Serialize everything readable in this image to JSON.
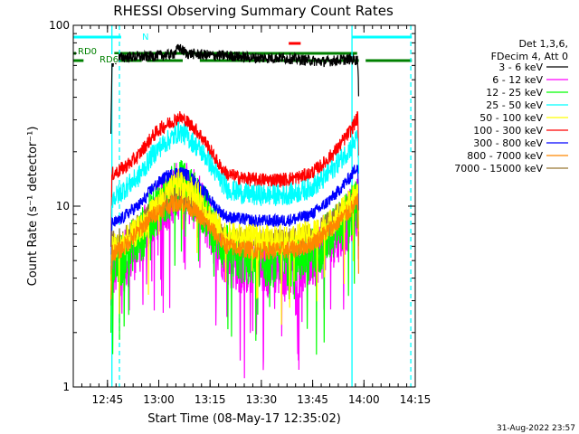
{
  "chart_data": {
    "type": "line",
    "title": "RHESSI Observing Summary Count Rates",
    "xlabel": "Start Time (08-May-17 12:35:02)",
    "ylabel": "Count Rate (s⁻¹ detector⁻¹)",
    "y_scale": "log",
    "ylim": [
      1,
      100
    ],
    "yticks": [
      {
        "value": 1,
        "label": "1"
      },
      {
        "value": 10,
        "label": "10"
      },
      {
        "value": 100,
        "label": "100"
      }
    ],
    "x_range_minutes": [
      755.0,
      855.0
    ],
    "xticks": [
      {
        "minutes": 765,
        "label": "12:45"
      },
      {
        "minutes": 780,
        "label": "13:00"
      },
      {
        "minutes": 795,
        "label": "13:15"
      },
      {
        "minutes": 810,
        "label": "13:30"
      },
      {
        "minutes": 825,
        "label": "13:45"
      },
      {
        "minutes": 840,
        "label": "14:00"
      },
      {
        "minutes": 855,
        "label": "14:15"
      }
    ],
    "legend_header": [
      "Det 1,3,6,",
      "FDecim 4, Att 0"
    ],
    "legend_placement": "right",
    "data_start_minutes": 766.0,
    "data_end_minutes": 838.5,
    "series": [
      {
        "name": "3 - 6 keV",
        "color": "#000000",
        "points": [
          [
            766.0,
            24
          ],
          [
            766.3,
            62
          ],
          [
            768,
            66
          ],
          [
            772,
            67
          ],
          [
            776,
            67
          ],
          [
            780,
            68
          ],
          [
            784,
            69
          ],
          [
            786,
            75
          ],
          [
            788,
            70
          ],
          [
            792,
            69
          ],
          [
            796,
            68
          ],
          [
            800,
            68
          ],
          [
            804,
            67
          ],
          [
            808,
            66
          ],
          [
            812,
            66
          ],
          [
            816,
            66
          ],
          [
            820,
            65
          ],
          [
            824,
            64
          ],
          [
            828,
            63
          ],
          [
            832,
            64
          ],
          [
            836,
            65
          ],
          [
            838.2,
            64
          ],
          [
            838.5,
            40
          ]
        ]
      },
      {
        "name": "6 - 12 keV",
        "color": "#ff00ff",
        "points": [
          [
            766.0,
            2.5
          ],
          [
            766.3,
            4.5
          ],
          [
            768,
            4.5
          ],
          [
            770,
            5.0
          ],
          [
            772,
            5.5
          ],
          [
            774,
            6.0
          ],
          [
            776,
            7.0
          ],
          [
            778,
            8.5
          ],
          [
            780,
            9.5
          ],
          [
            782,
            10.5
          ],
          [
            784,
            11.5
          ],
          [
            786,
            12.5
          ],
          [
            788,
            12.0
          ],
          [
            790,
            11.0
          ],
          [
            792,
            10.0
          ],
          [
            794,
            8.5
          ],
          [
            796,
            7.0
          ],
          [
            798,
            6.0
          ],
          [
            800,
            5.2
          ],
          [
            804,
            4.8
          ],
          [
            808,
            4.6
          ],
          [
            812,
            4.6
          ],
          [
            816,
            4.6
          ],
          [
            820,
            4.7
          ],
          [
            824,
            5.0
          ],
          [
            828,
            5.8
          ],
          [
            832,
            7.0
          ],
          [
            836,
            8.5
          ],
          [
            838.2,
            10.0
          ],
          [
            838.5,
            5.0
          ]
        ]
      },
      {
        "name": "12 - 25 keV",
        "color": "#00ff00",
        "points": [
          [
            766.0,
            2.8
          ],
          [
            766.3,
            4.8
          ],
          [
            768,
            4.8
          ],
          [
            770,
            5.3
          ],
          [
            772,
            6.0
          ],
          [
            774,
            6.5
          ],
          [
            776,
            7.5
          ],
          [
            778,
            9.0
          ],
          [
            780,
            10.0
          ],
          [
            782,
            11.0
          ],
          [
            784,
            12.0
          ],
          [
            786,
            13.0
          ],
          [
            788,
            12.5
          ],
          [
            790,
            11.5
          ],
          [
            792,
            10.5
          ],
          [
            794,
            9.0
          ],
          [
            796,
            7.5
          ],
          [
            798,
            6.4
          ],
          [
            800,
            5.6
          ],
          [
            804,
            5.2
          ],
          [
            808,
            5.0
          ],
          [
            812,
            5.0
          ],
          [
            816,
            5.0
          ],
          [
            820,
            5.1
          ],
          [
            824,
            5.4
          ],
          [
            828,
            6.2
          ],
          [
            832,
            7.5
          ],
          [
            836,
            9.0
          ],
          [
            838.2,
            10.5
          ],
          [
            838.5,
            5.5
          ]
        ]
      },
      {
        "name": "25 - 50 keV",
        "color": "#00ffff",
        "points": [
          [
            766.0,
            4.5
          ],
          [
            766.3,
            11.0
          ],
          [
            768,
            11.5
          ],
          [
            770,
            12.5
          ],
          [
            772,
            13.5
          ],
          [
            774,
            14.5
          ],
          [
            776,
            16.5
          ],
          [
            778,
            19.0
          ],
          [
            780,
            21.0
          ],
          [
            782,
            22.5
          ],
          [
            784,
            24.0
          ],
          [
            786,
            26.0
          ],
          [
            788,
            24.5
          ],
          [
            790,
            22.5
          ],
          [
            792,
            20.5
          ],
          [
            794,
            18.5
          ],
          [
            796,
            16.0
          ],
          [
            798,
            14.0
          ],
          [
            800,
            12.5
          ],
          [
            804,
            11.8
          ],
          [
            808,
            11.5
          ],
          [
            812,
            11.5
          ],
          [
            816,
            11.5
          ],
          [
            820,
            11.8
          ],
          [
            824,
            12.5
          ],
          [
            828,
            14.0
          ],
          [
            832,
            17.0
          ],
          [
            836,
            21.0
          ],
          [
            838.2,
            24.0
          ],
          [
            838.5,
            12.0
          ]
        ]
      },
      {
        "name": "50 - 100 keV",
        "color": "#ffff00",
        "points": [
          [
            766.0,
            3.5
          ],
          [
            766.3,
            6.0
          ],
          [
            768,
            6.0
          ],
          [
            772,
            6.8
          ],
          [
            776,
            8.0
          ],
          [
            780,
            10.5
          ],
          [
            784,
            12.5
          ],
          [
            786,
            13.5
          ],
          [
            788,
            13.0
          ],
          [
            792,
            11.0
          ],
          [
            796,
            8.2
          ],
          [
            800,
            6.8
          ],
          [
            808,
            6.6
          ],
          [
            816,
            6.6
          ],
          [
            824,
            6.9
          ],
          [
            830,
            8.0
          ],
          [
            834,
            9.5
          ],
          [
            838.2,
            12.0
          ],
          [
            838.5,
            6.0
          ]
        ]
      },
      {
        "name": "100 - 300 keV",
        "color": "#ff0000",
        "points": [
          [
            766.0,
            6.0
          ],
          [
            766.3,
            15.0
          ],
          [
            768,
            15.5
          ],
          [
            770,
            16.5
          ],
          [
            772,
            17.5
          ],
          [
            774,
            19.0
          ],
          [
            776,
            21.5
          ],
          [
            778,
            24.0
          ],
          [
            780,
            26.5
          ],
          [
            782,
            28.0
          ],
          [
            784,
            29.5
          ],
          [
            786,
            31.0
          ],
          [
            788,
            29.5
          ],
          [
            790,
            27.5
          ],
          [
            792,
            25.0
          ],
          [
            794,
            22.0
          ],
          [
            796,
            19.0
          ],
          [
            798,
            16.5
          ],
          [
            800,
            15.0
          ],
          [
            804,
            14.3
          ],
          [
            808,
            14.0
          ],
          [
            812,
            14.0
          ],
          [
            816,
            14.0
          ],
          [
            820,
            14.3
          ],
          [
            824,
            15.0
          ],
          [
            828,
            17.0
          ],
          [
            832,
            20.5
          ],
          [
            836,
            26.0
          ],
          [
            838.2,
            31.0
          ],
          [
            838.5,
            16.0
          ]
        ]
      },
      {
        "name": "300 - 800 keV",
        "color": "#0000ff",
        "points": [
          [
            766.0,
            4.5
          ],
          [
            766.3,
            8.0
          ],
          [
            768,
            8.2
          ],
          [
            770,
            8.8
          ],
          [
            772,
            9.5
          ],
          [
            774,
            10.0
          ],
          [
            776,
            11.0
          ],
          [
            778,
            12.5
          ],
          [
            780,
            13.5
          ],
          [
            782,
            14.5
          ],
          [
            784,
            15.0
          ],
          [
            786,
            15.5
          ],
          [
            788,
            15.0
          ],
          [
            790,
            14.0
          ],
          [
            792,
            12.8
          ],
          [
            794,
            11.5
          ],
          [
            796,
            10.3
          ],
          [
            798,
            9.3
          ],
          [
            800,
            8.7
          ],
          [
            804,
            8.5
          ],
          [
            808,
            8.3
          ],
          [
            812,
            8.3
          ],
          [
            816,
            8.3
          ],
          [
            820,
            8.5
          ],
          [
            824,
            8.9
          ],
          [
            828,
            10.0
          ],
          [
            832,
            11.8
          ],
          [
            836,
            14.5
          ],
          [
            838.2,
            17.0
          ],
          [
            838.5,
            9.0
          ]
        ]
      },
      {
        "name": "800 - 7000 keV",
        "color": "#ff8800",
        "points": [
          [
            766.0,
            3.0
          ],
          [
            766.3,
            5.5
          ],
          [
            768,
            5.6
          ],
          [
            770,
            6.0
          ],
          [
            772,
            6.6
          ],
          [
            774,
            7.2
          ],
          [
            776,
            8.0
          ],
          [
            778,
            8.8
          ],
          [
            780,
            9.4
          ],
          [
            782,
            9.9
          ],
          [
            784,
            10.3
          ],
          [
            786,
            10.5
          ],
          [
            788,
            10.2
          ],
          [
            790,
            9.6
          ],
          [
            792,
            8.8
          ],
          [
            794,
            8.0
          ],
          [
            796,
            7.2
          ],
          [
            798,
            6.5
          ],
          [
            800,
            6.0
          ],
          [
            804,
            5.8
          ],
          [
            808,
            5.7
          ],
          [
            812,
            5.7
          ],
          [
            816,
            5.7
          ],
          [
            820,
            5.8
          ],
          [
            824,
            6.1
          ],
          [
            828,
            6.9
          ],
          [
            832,
            8.0
          ],
          [
            836,
            9.5
          ],
          [
            838.2,
            10.5
          ],
          [
            838.5,
            4.0
          ]
        ]
      },
      {
        "name": "7000 - 15000 keV",
        "color": "#997733",
        "points": [
          [
            766.0,
            3.5
          ],
          [
            766.3,
            6.5
          ],
          [
            768,
            6.6
          ],
          [
            772,
            7.3
          ],
          [
            776,
            8.8
          ],
          [
            780,
            10.2
          ],
          [
            784,
            11.2
          ],
          [
            786,
            11.5
          ],
          [
            788,
            11.0
          ],
          [
            792,
            9.6
          ],
          [
            796,
            7.9
          ],
          [
            800,
            6.8
          ],
          [
            808,
            6.5
          ],
          [
            816,
            6.5
          ],
          [
            824,
            6.9
          ],
          [
            830,
            8.4
          ],
          [
            834,
            9.6
          ],
          [
            838.2,
            11.0
          ],
          [
            838.5,
            6.0
          ]
        ]
      }
    ],
    "attenuator_markers": [
      {
        "label": "N",
        "color": "#00ffff",
        "bars": [
          [
            755.0,
            769.0
          ],
          [
            836.5,
            854.0
          ]
        ]
      },
      {
        "label": "RD0",
        "color": "#008000",
        "bars": [
          [
            755.0,
            756.2
          ],
          [
            767.0,
            838.0
          ]
        ]
      },
      {
        "label": "RD6",
        "color": "#008000",
        "bars": [
          [
            755.0,
            758.0
          ],
          [
            768.0,
            775.0
          ],
          [
            776.5,
            787.0
          ],
          [
            792.0,
            812.0
          ],
          [
            814.0,
            838.5
          ],
          [
            840.5,
            854.0
          ]
        ]
      },
      {
        "label": "",
        "color": "#ff0000",
        "bars": [
          [
            818.0,
            821.5
          ]
        ]
      }
    ],
    "vertical_markers": [
      {
        "minutes": 766.3,
        "style": "solid",
        "color": "#00ffff"
      },
      {
        "minutes": 768.5,
        "style": "dashed",
        "color": "#00ffff"
      },
      {
        "minutes": 836.5,
        "style": "solid",
        "color": "#00ffff"
      },
      {
        "minutes": 853.7,
        "style": "dashed",
        "color": "#00ffff"
      }
    ],
    "footer_timestamp": "31-Aug-2022 23:57"
  }
}
